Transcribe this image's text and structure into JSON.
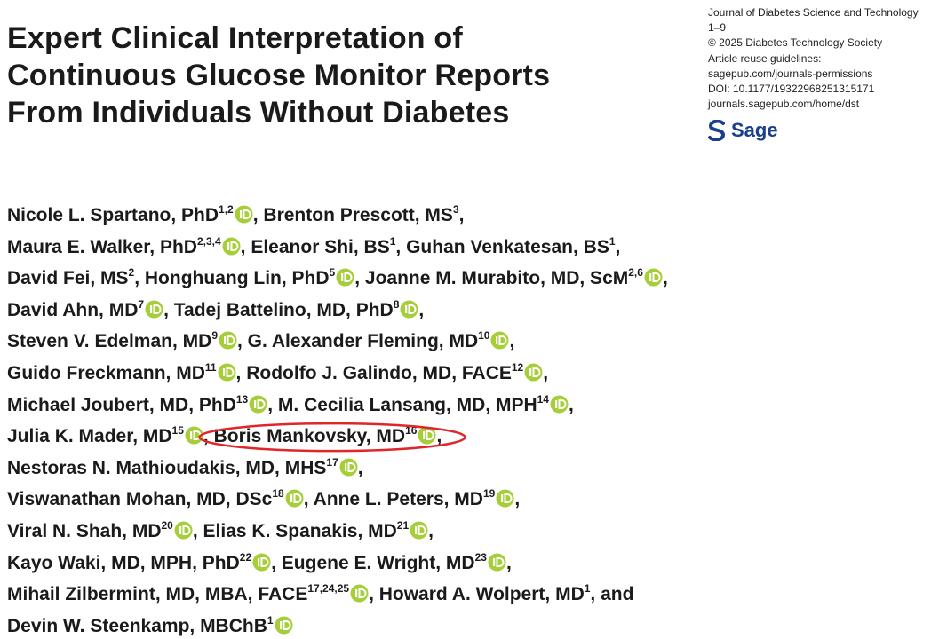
{
  "header": {
    "title_lines": [
      "Expert Clinical Interpretation of",
      "Continuous Glucose Monitor Reports",
      "From Individuals Without Diabetes"
    ],
    "journal_lines": [
      "Journal of Diabetes Science and Technology",
      "1–9",
      "© 2025 Diabetes Technology Society",
      "Article reuse guidelines:",
      "sagepub.com/journals-permissions",
      "DOI: 10.1177/19322968251315171",
      "journals.sagepub.com/home/dst"
    ],
    "publisher": "Sage"
  },
  "authors": [
    [
      {
        "name": "Nicole L. Spartano, PhD",
        "sup": "1,2",
        "orcid": true,
        "after": ", "
      },
      {
        "name": "Brenton Prescott, MS",
        "sup": "3",
        "after": ","
      }
    ],
    [
      {
        "name": "Maura E. Walker, PhD",
        "sup": "2,3,4",
        "orcid": true,
        "after": ", "
      },
      {
        "name": "Eleanor Shi, BS",
        "sup": "1",
        "after": ", "
      },
      {
        "name": "Guhan Venkatesan, BS",
        "sup": "1",
        "after": ","
      }
    ],
    [
      {
        "name": "David Fei, MS",
        "sup": "2",
        "after": ", "
      },
      {
        "name": "Honghuang Lin, PhD",
        "sup": "5",
        "orcid": true,
        "after": ", "
      },
      {
        "name": "Joanne M. Murabito, MD, ScM",
        "sup": "2,6",
        "orcid": true,
        "after": ","
      }
    ],
    [
      {
        "name": "David Ahn, MD",
        "sup": "7",
        "orcid": true,
        "after": ", "
      },
      {
        "name": "Tadej Battelino, MD, PhD",
        "sup": "8",
        "orcid": true,
        "after": ","
      }
    ],
    [
      {
        "name": "Steven V. Edelman, MD",
        "sup": "9",
        "orcid": true,
        "after": ", "
      },
      {
        "name": "G. Alexander Fleming, MD",
        "sup": "10",
        "orcid": true,
        "after": ","
      }
    ],
    [
      {
        "name": "Guido Freckmann, MD",
        "sup": "11",
        "orcid": true,
        "after": ", "
      },
      {
        "name": "Rodolfo J. Galindo, MD, FACE",
        "sup": "12",
        "orcid": true,
        "after": ","
      }
    ],
    [
      {
        "name": "Michael Joubert, MD, PhD",
        "sup": "13",
        "orcid": true,
        "after": ", "
      },
      {
        "name": "M. Cecilia Lansang, MD, MPH",
        "sup": "14",
        "orcid": true,
        "after": ","
      }
    ],
    [
      {
        "name": "Julia K. Mader, MD",
        "sup": "15",
        "orcid": true,
        "after": ", "
      },
      {
        "name": "Boris Mankovsky, MD",
        "sup": "16",
        "orcid": true,
        "after": ",",
        "highlight": true
      }
    ],
    [
      {
        "name": "Nestoras N. Mathioudakis, MD, MHS",
        "sup": "17",
        "orcid": true,
        "after": ","
      }
    ],
    [
      {
        "name": "Viswanathan Mohan, MD, DSc",
        "sup": "18",
        "orcid": true,
        "after": ", "
      },
      {
        "name": "Anne L. Peters, MD",
        "sup": "19",
        "orcid": true,
        "after": ","
      }
    ],
    [
      {
        "name": "Viral N. Shah, MD",
        "sup": "20",
        "orcid": true,
        "after": ", "
      },
      {
        "name": "Elias K. Spanakis, MD",
        "sup": "21",
        "orcid": true,
        "after": ","
      }
    ],
    [
      {
        "name": "Kayo Waki, MD, MPH, PhD",
        "sup": "22",
        "orcid": true,
        "after": ", "
      },
      {
        "name": "Eugene E. Wright, MD",
        "sup": "23",
        "orcid": true,
        "after": ","
      }
    ],
    [
      {
        "name": "Mihail Zilbermint, MD, MBA, FACE",
        "sup": "17,24,25",
        "orcid": true,
        "after": ", "
      },
      {
        "name": "Howard A. Wolpert, MD",
        "sup": "1",
        "after": ", and"
      }
    ],
    [
      {
        "name": "Devin W. Steenkamp, MBChB",
        "sup": "1",
        "orcid": true
      }
    ]
  ]
}
